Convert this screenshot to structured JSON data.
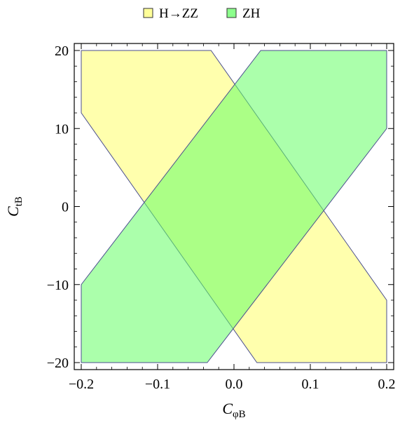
{
  "chart_data": {
    "type": "area",
    "title": "",
    "xlabel": "C",
    "xlabel_sub": "φB",
    "ylabel": "C",
    "ylabel_sub": "tB",
    "xlim": [
      -0.2,
      0.2
    ],
    "ylim": [
      -20,
      20
    ],
    "x_ticks": [
      -0.2,
      -0.1,
      0.0,
      0.1,
      0.2
    ],
    "x_tick_labels": [
      "−0.2",
      "−0.1",
      "0.0",
      "0.1",
      "0.2"
    ],
    "y_ticks": [
      -20,
      -10,
      0,
      10,
      20
    ],
    "y_tick_labels": [
      "−20",
      "−10",
      "0",
      "10",
      "20"
    ],
    "grid": false,
    "legend_position": "top-center",
    "series": [
      {
        "name": "H→ZZ",
        "color": "#ffff99",
        "edge_color": "#4b4f8f",
        "opacity": 0.8,
        "polygons": [
          [
            [
              -0.2,
              20
            ],
            [
              -0.03,
              20
            ],
            [
              0.2,
              -12
            ],
            [
              0.2,
              -20
            ],
            [
              0.03,
              -20
            ],
            [
              -0.2,
              12
            ]
          ]
        ]
      },
      {
        "name": "ZH",
        "color": "#66ff66",
        "edge_color": "#4b4f8f",
        "opacity": 0.55,
        "polygons": [
          [
            [
              -0.2,
              -20
            ],
            [
              -0.035,
              -20
            ],
            [
              0.2,
              10
            ],
            [
              0.2,
              20
            ],
            [
              0.035,
              20
            ],
            [
              -0.2,
              -10
            ]
          ]
        ]
      }
    ]
  }
}
